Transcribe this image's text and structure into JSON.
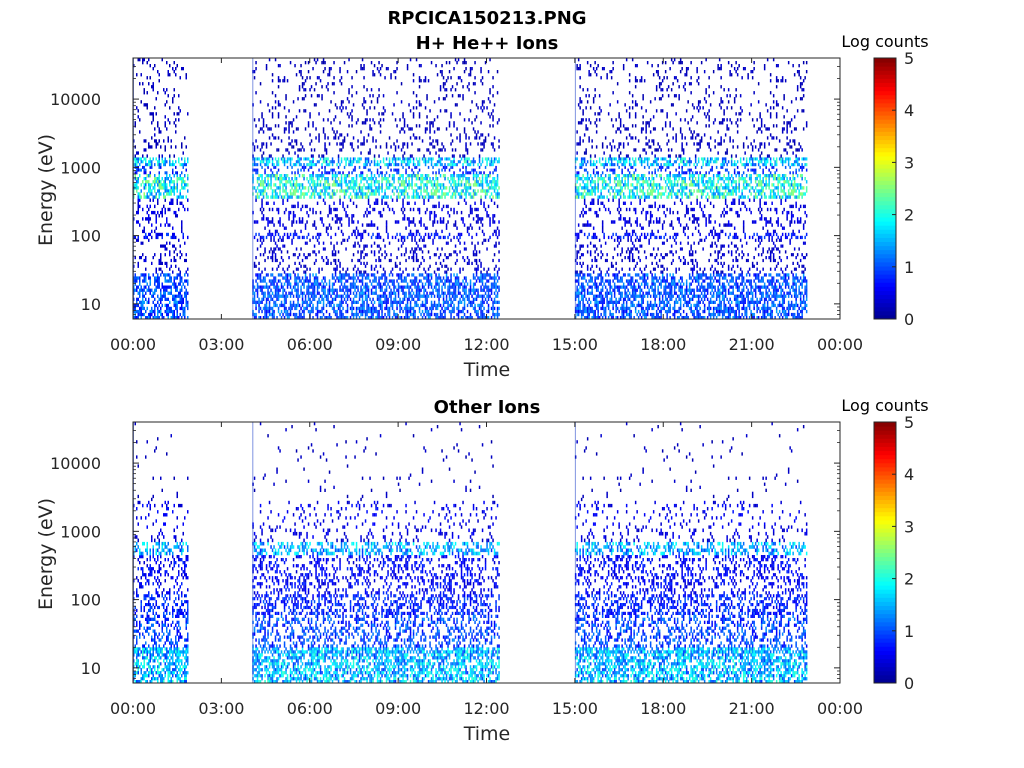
{
  "figure": {
    "filename": "RPCICA150213.PNG"
  },
  "colors": {
    "jet_stops": [
      "#00008f",
      "#0000ff",
      "#0080ff",
      "#00ffff",
      "#80ff80",
      "#ffff00",
      "#ff8000",
      "#ff0000",
      "#800000"
    ],
    "axis": "#262626",
    "background": "#ffffff"
  },
  "chart_data": [
    {
      "type": "heatmap",
      "title": "H+ He++ Ions",
      "xlabel": "Time",
      "ylabel": "Energy (eV)",
      "x_ticks": [
        "00:00",
        "03:00",
        "06:00",
        "09:00",
        "12:00",
        "15:00",
        "18:00",
        "21:00",
        "00:00"
      ],
      "x_range_hours": [
        0,
        24
      ],
      "y_scale": "log",
      "y_ticks": [
        "10",
        "100",
        "1000",
        "10000"
      ],
      "y_tick_values": [
        10,
        100,
        1000,
        10000
      ],
      "y_range_eV": [
        6,
        40000
      ],
      "colorbar": {
        "label": "Log counts",
        "ticks": [
          "0",
          "1",
          "2",
          "3",
          "4",
          "5"
        ],
        "range": [
          0,
          5
        ]
      },
      "data_intervals_hours": [
        [
          0.0,
          1.85
        ],
        [
          4.05,
          12.45
        ],
        [
          15.0,
          22.85
        ]
      ],
      "bands": [
        {
          "e_range": [
            6,
            28
          ],
          "log_counts": 1.2,
          "density": 0.55
        },
        {
          "e_range": [
            28,
            90
          ],
          "log_counts": 0.4,
          "density": 0.15
        },
        {
          "e_range": [
            90,
            110
          ],
          "log_counts": 0.8,
          "density": 0.35
        },
        {
          "e_range": [
            110,
            350
          ],
          "log_counts": 0.5,
          "density": 0.2
        },
        {
          "e_range": [
            350,
            800
          ],
          "log_counts": 2.2,
          "density": 0.55
        },
        {
          "e_range": [
            800,
            1050
          ],
          "log_counts": 1.0,
          "density": 0.3
        },
        {
          "e_range": [
            1050,
            1400
          ],
          "log_counts": 1.9,
          "density": 0.6
        },
        {
          "e_range": [
            1400,
            40000
          ],
          "log_counts": 0.3,
          "density": 0.12
        }
      ]
    },
    {
      "type": "heatmap",
      "title": "Other Ions",
      "xlabel": "Time",
      "ylabel": "Energy (eV)",
      "x_ticks": [
        "00:00",
        "03:00",
        "06:00",
        "09:00",
        "12:00",
        "15:00",
        "18:00",
        "21:00",
        "00:00"
      ],
      "x_range_hours": [
        0,
        24
      ],
      "y_scale": "log",
      "y_ticks": [
        "10",
        "100",
        "1000",
        "10000"
      ],
      "y_tick_values": [
        10,
        100,
        1000,
        10000
      ],
      "y_range_eV": [
        6,
        40000
      ],
      "colorbar": {
        "label": "Log counts",
        "ticks": [
          "0",
          "1",
          "2",
          "3",
          "4",
          "5"
        ],
        "range": [
          0,
          5
        ]
      },
      "data_intervals_hours": [
        [
          0.0,
          1.85
        ],
        [
          4.05,
          12.45
        ],
        [
          15.0,
          22.85
        ]
      ],
      "bands": [
        {
          "e_range": [
            6,
            20
          ],
          "log_counts": 1.8,
          "density": 0.6
        },
        {
          "e_range": [
            20,
            60
          ],
          "log_counts": 1.1,
          "density": 0.35
        },
        {
          "e_range": [
            60,
            120
          ],
          "log_counts": 0.9,
          "density": 0.4
        },
        {
          "e_range": [
            120,
            450
          ],
          "log_counts": 0.7,
          "density": 0.28
        },
        {
          "e_range": [
            450,
            700
          ],
          "log_counts": 1.7,
          "density": 0.45
        },
        {
          "e_range": [
            700,
            1100
          ],
          "log_counts": 0.5,
          "density": 0.15
        },
        {
          "e_range": [
            1100,
            2800
          ],
          "log_counts": 0.6,
          "density": 0.12
        },
        {
          "e_range": [
            2800,
            40000
          ],
          "log_counts": 0.3,
          "density": 0.02
        }
      ]
    }
  ]
}
